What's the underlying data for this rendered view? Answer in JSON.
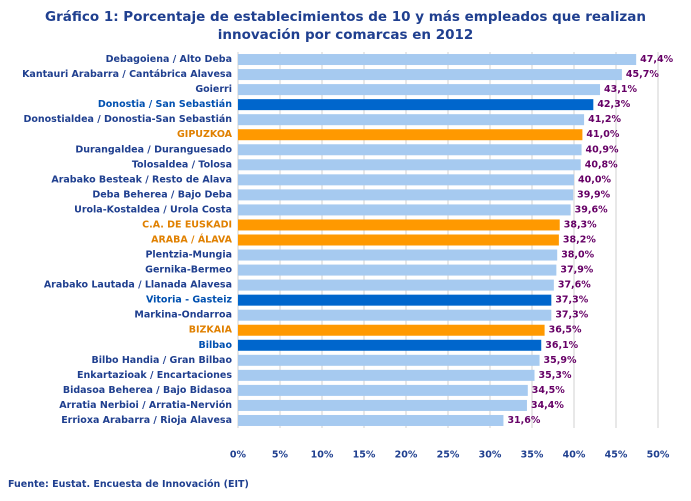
{
  "chart_data": {
    "type": "barh",
    "title": "Gráfico 1: Porcentaje de establecimientos de 10 y más empleados que realizan innovación por comarcas en 2012",
    "source": "Fuente: Eustat. Encuesta de Innovación (EIT)",
    "categories": [
      "Debagoiena / Alto Deba",
      "Kantauri Arabarra / Cantábrica Alavesa",
      "Goierri",
      "Donostia / San Sebastián",
      "Donostialdea / Donostia-San Sebastián",
      "GIPUZKOA",
      "Durangaldea / Duranguesado",
      "Tolosaldea / Tolosa",
      "Arabako Besteak / Resto de Alava",
      "Deba Beherea / Bajo Deba",
      "Urola-Kostaldea / Urola Costa",
      "C.A. DE EUSKADI",
      "ARABA / ÁLAVA",
      "Plentzia-Mungia",
      "Gernika-Bermeo",
      "Arabako Lautada / Llanada Alavesa",
      "Vitoria - Gasteiz",
      "Markina-Ondarroa",
      "BIZKAIA",
      "Bilbao",
      "Bilbo Handia / Gran Bilbao",
      "Enkartazioak / Encartaciones",
      "Bidasoa Beherea / Bajo Bidasoa",
      "Arratia Nerbioi / Arratia-Nervión",
      "Errioxa Arabarra / Rioja Alavesa"
    ],
    "values": [
      47.4,
      45.7,
      43.1,
      42.3,
      41.2,
      41.0,
      40.9,
      40.8,
      40.0,
      39.9,
      39.6,
      38.3,
      38.2,
      38.0,
      37.9,
      37.6,
      37.3,
      37.3,
      36.5,
      36.1,
      35.9,
      35.3,
      34.5,
      34.4,
      31.6
    ],
    "value_labels": [
      "47,4%",
      "45,7%",
      "43,1%",
      "42,3%",
      "41,2%",
      "41,0%",
      "40,9%",
      "40,8%",
      "40,0%",
      "39,9%",
      "39,6%",
      "38,3%",
      "38,2%",
      "38,0%",
      "37,9%",
      "37,6%",
      "37,3%",
      "37,3%",
      "36,5%",
      "36,1%",
      "35,9%",
      "35,3%",
      "34,5%",
      "34,4%",
      "31,6%"
    ],
    "colors": [
      "#a6caf0",
      "#a6caf0",
      "#a6caf0",
      "#0066cc",
      "#a6caf0",
      "#ff9900",
      "#a6caf0",
      "#a6caf0",
      "#a6caf0",
      "#a6caf0",
      "#a6caf0",
      "#ff9900",
      "#ff9900",
      "#a6caf0",
      "#a6caf0",
      "#a6caf0",
      "#0066cc",
      "#a6caf0",
      "#ff9900",
      "#0066cc",
      "#a6caf0",
      "#a6caf0",
      "#a6caf0",
      "#a6caf0",
      "#a6caf0"
    ],
    "xlim": [
      0,
      50
    ],
    "xticks": [
      {
        "value": 0,
        "label": "0%"
      },
      {
        "value": 5,
        "label": "5%"
      },
      {
        "value": 10,
        "label": "10%"
      },
      {
        "value": 15,
        "label": "15%"
      },
      {
        "value": 20,
        "label": "20%"
      },
      {
        "value": 25,
        "label": "25%"
      },
      {
        "value": 30,
        "label": "30%"
      },
      {
        "value": 35,
        "label": "35%"
      },
      {
        "value": 40,
        "label": "40%"
      },
      {
        "value": 45,
        "label": "45%"
      },
      {
        "value": 50,
        "label": "50%"
      }
    ],
    "grid": true
  }
}
